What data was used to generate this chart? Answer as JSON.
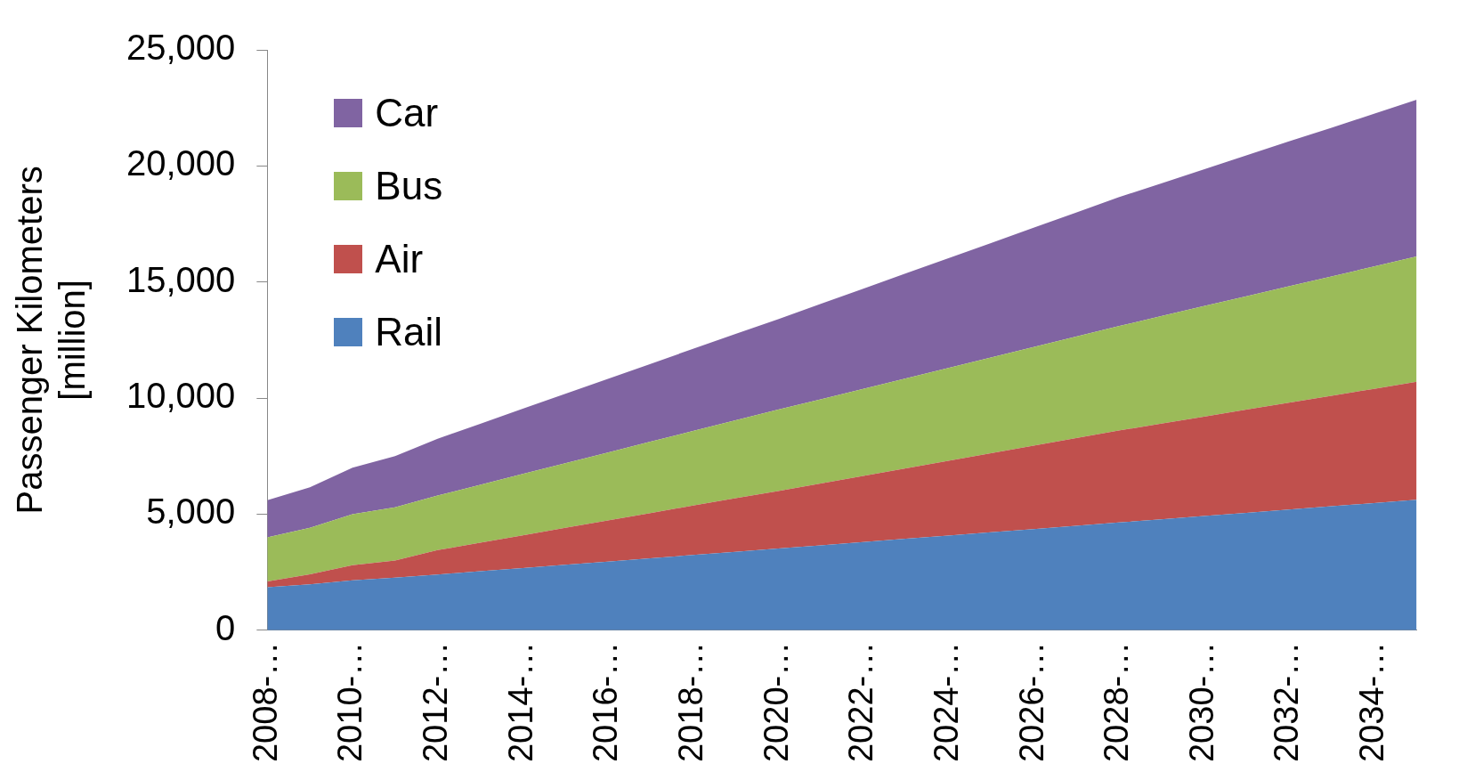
{
  "chart_data": {
    "type": "area",
    "stacked": true,
    "ylabel": "Passenger Kilometers [million]",
    "categories": [
      "2008-…",
      null,
      "2010-…",
      null,
      "2012-…",
      null,
      "2014-…",
      null,
      "2016-…",
      null,
      "2018-…",
      null,
      "2020-…",
      null,
      "2022-…",
      null,
      "2024-…",
      null,
      "2026-…",
      null,
      "2028-…",
      null,
      "2030-…",
      null,
      "2032-…",
      null,
      "2034-…",
      null
    ],
    "series": [
      {
        "name": "Rail",
        "color": "#4f81bd",
        "values": [
          1850,
          1980,
          2150,
          2270,
          2400,
          2540,
          2680,
          2820,
          2960,
          3100,
          3240,
          3380,
          3520,
          3660,
          3800,
          3940,
          4080,
          4220,
          4360,
          4500,
          4640,
          4780,
          4920,
          5060,
          5200,
          5340,
          5480,
          5620
        ]
      },
      {
        "name": "Air",
        "color": "#c0504d",
        "values": [
          250,
          430,
          650,
          730,
          1050,
          1230,
          1410,
          1590,
          1770,
          1950,
          2130,
          2310,
          2480,
          2665,
          2850,
          3035,
          3220,
          3405,
          3590,
          3775,
          3960,
          4120,
          4280,
          4440,
          4600,
          4760,
          4920,
          5080
        ]
      },
      {
        "name": "Bus",
        "color": "#9bbb59",
        "values": [
          1900,
          2000,
          2200,
          2300,
          2350,
          2495,
          2640,
          2780,
          2925,
          3070,
          3210,
          3355,
          3500,
          3625,
          3750,
          3875,
          4000,
          4125,
          4250,
          4375,
          4500,
          4630,
          4760,
          4890,
          5020,
          5140,
          5270,
          5400
        ]
      },
      {
        "name": "Car",
        "color": "#8064a2",
        "values": [
          1600,
          1750,
          2000,
          2200,
          2450,
          2630,
          2810,
          2995,
          3175,
          3355,
          3540,
          3720,
          3900,
          4105,
          4310,
          4520,
          4725,
          4930,
          5140,
          5345,
          5550,
          5720,
          5890,
          6065,
          6235,
          6405,
          6580,
          6750
        ]
      }
    ],
    "ylim": [
      0,
      25000
    ],
    "yticks": [
      {
        "value": 0,
        "label": "0"
      },
      {
        "value": 5000,
        "label": "5,000"
      },
      {
        "value": 10000,
        "label": "10,000"
      },
      {
        "value": 15000,
        "label": "15,000"
      },
      {
        "value": 20000,
        "label": "20,000"
      },
      {
        "value": 25000,
        "label": "25,000"
      }
    ],
    "legend": "top left",
    "grid": false
  }
}
